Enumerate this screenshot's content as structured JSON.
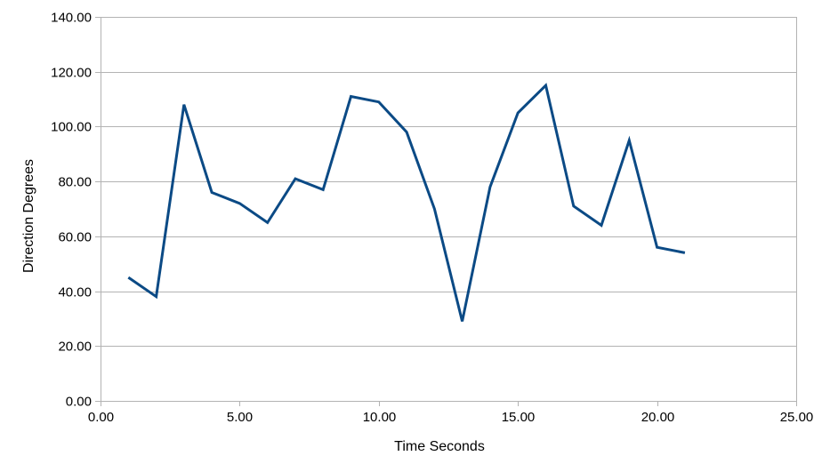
{
  "chart_data": {
    "type": "line",
    "title": "",
    "xlabel": "Time Seconds",
    "ylabel": "Direction Degrees",
    "xlim": [
      0,
      25
    ],
    "ylim": [
      0,
      140
    ],
    "x_ticks": [
      "0.00",
      "5.00",
      "10.00",
      "15.00",
      "20.00",
      "25.00"
    ],
    "y_ticks": [
      "0.00",
      "20.00",
      "40.00",
      "60.00",
      "80.00",
      "100.00",
      "120.00",
      "140.00"
    ],
    "grid": true,
    "legend": "none",
    "series": [
      {
        "color": "#0b4a85",
        "x": [
          1,
          2,
          3,
          4,
          5,
          6,
          7,
          8,
          9,
          10,
          11,
          12,
          13,
          14,
          15,
          16,
          17,
          18,
          19,
          20,
          21
        ],
        "y": [
          45,
          38,
          108,
          76,
          72,
          65,
          81,
          77,
          111,
          109,
          98,
          70,
          29,
          78,
          105,
          115,
          71,
          64,
          95,
          56,
          54
        ]
      }
    ],
    "colors": {
      "grid": "#b3b3b3",
      "axis": "#b3b3b3",
      "line": "#0b4a85"
    }
  }
}
